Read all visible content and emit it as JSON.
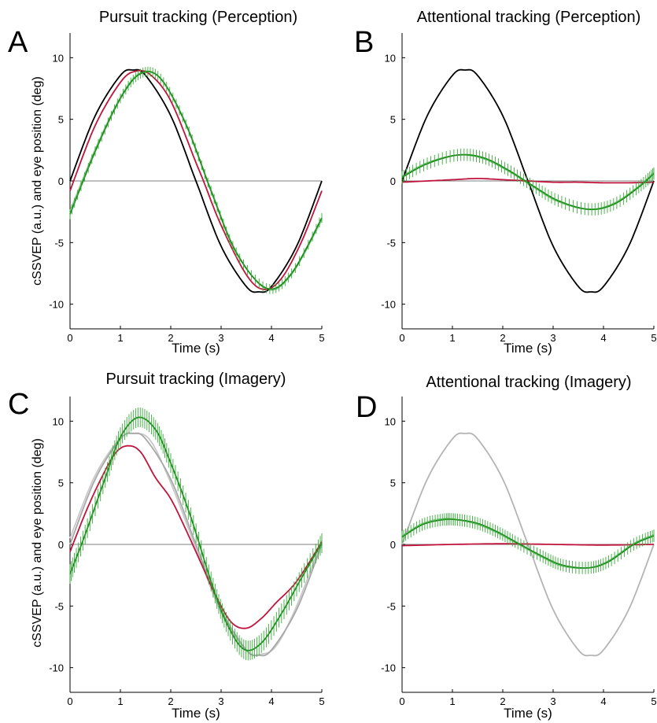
{
  "chart_data": [
    {
      "panel_letter": "A",
      "title": "Pursuit tracking (Perception)",
      "type": "line",
      "xlabel": "Time (s)",
      "ylabel": "cSSVEP (a.u.) and eye position (deg)",
      "xlim": [
        0,
        5
      ],
      "ylim": [
        -12,
        12
      ],
      "xticks": [
        "0",
        "1",
        "2",
        "3",
        "4",
        "5"
      ],
      "yticks": [
        "-10",
        "-5",
        "0",
        "5",
        "10"
      ],
      "zero_line": true,
      "series": [
        {
          "role": "stimulus",
          "color": "#000000",
          "x": [
            0,
            0.5,
            1.0,
            1.25,
            1.5,
            2.0,
            2.5,
            3.0,
            3.5,
            3.75,
            4.0,
            4.5,
            5.0
          ],
          "y": [
            0,
            5.29,
            8.56,
            9.0,
            8.56,
            5.29,
            0,
            -5.29,
            -8.56,
            -9.0,
            -8.56,
            -5.29,
            0
          ]
        },
        {
          "role": "eye position",
          "color": "#c0143c",
          "x": [
            0,
            0.5,
            1.0,
            1.3,
            1.6,
            2.0,
            2.5,
            2.65,
            3.0,
            3.5,
            3.85,
            4.2,
            4.6,
            5.0
          ],
          "y": [
            -0.8,
            4.5,
            8.0,
            8.9,
            8.6,
            6.5,
            1.5,
            0,
            -3.6,
            -7.6,
            -8.8,
            -7.9,
            -4.9,
            -0.8
          ]
        },
        {
          "role": "cSSVEP mean",
          "color": "#1a8a1a",
          "errorbars": true,
          "err": 0.4,
          "x": [
            0,
            0.5,
            1.0,
            1.4,
            1.8,
            2.3,
            2.8,
            3.3,
            3.9,
            4.4,
            5.0
          ],
          "y": [
            -2.7,
            2.4,
            6.7,
            8.7,
            8.3,
            4.6,
            -0.8,
            -5.8,
            -8.7,
            -7.5,
            -3.0
          ]
        },
        {
          "role": "fit",
          "color": "#8ecf8e",
          "x": [
            0,
            0.5,
            1.0,
            1.4,
            1.8,
            2.3,
            2.8,
            3.3,
            3.9,
            4.4,
            5.0
          ],
          "y": [
            -2.4,
            2.6,
            6.8,
            8.8,
            8.3,
            4.7,
            -0.7,
            -5.7,
            -8.8,
            -7.6,
            -3.2
          ]
        }
      ]
    },
    {
      "panel_letter": "B",
      "title": "Attentional tracking (Perception)",
      "type": "line",
      "xlabel": "Time (s)",
      "ylabel": "",
      "xlim": [
        0,
        5
      ],
      "ylim": [
        -12,
        12
      ],
      "xticks": [
        "0",
        "1",
        "2",
        "3",
        "4",
        "5"
      ],
      "yticks": [
        "-10",
        "-5",
        "0",
        "5",
        "10"
      ],
      "zero_line": true,
      "series": [
        {
          "role": "stimulus",
          "color": "#000000",
          "x": [
            0,
            0.5,
            1.0,
            1.25,
            1.5,
            2.0,
            2.5,
            3.0,
            3.5,
            3.75,
            4.0,
            4.5,
            5.0
          ],
          "y": [
            0,
            5.29,
            8.56,
            9.0,
            8.56,
            5.29,
            0,
            -5.29,
            -8.56,
            -9.0,
            -8.56,
            -5.29,
            0
          ]
        },
        {
          "role": "eye position",
          "color": "#c0143c",
          "x": [
            0,
            1.0,
            1.5,
            2.0,
            2.5,
            3.0,
            3.5,
            4.0,
            4.5,
            5.0
          ],
          "y": [
            -0.1,
            0.1,
            0.2,
            0.1,
            0.0,
            -0.1,
            -0.1,
            -0.15,
            -0.15,
            -0.1
          ]
        },
        {
          "role": "cSSVEP mean",
          "color": "#1a8a1a",
          "errorbars": true,
          "err": 0.5,
          "x": [
            0,
            0.5,
            1.1,
            1.6,
            2.1,
            2.6,
            3.1,
            3.7,
            4.2,
            4.7,
            5.0
          ],
          "y": [
            0.3,
            1.4,
            2.1,
            1.9,
            0.9,
            -0.4,
            -1.6,
            -2.3,
            -1.9,
            -0.5,
            0.6
          ]
        },
        {
          "role": "fit",
          "color": "#8ecf8e",
          "x": [
            0,
            0.5,
            1.1,
            1.6,
            2.1,
            2.6,
            3.1,
            3.7,
            4.2,
            4.7,
            5.0
          ],
          "y": [
            0.4,
            1.5,
            2.1,
            1.8,
            0.8,
            -0.5,
            -1.7,
            -2.3,
            -1.8,
            -0.4,
            0.7
          ]
        }
      ]
    },
    {
      "panel_letter": "C",
      "title": "Pursuit tracking (Imagery)",
      "type": "line",
      "xlabel": "Time (s)",
      "ylabel": "cSSVEP (a.u.) and eye position (deg)",
      "xlim": [
        0,
        5
      ],
      "ylim": [
        -12,
        12
      ],
      "xticks": [
        "0",
        "1",
        "2",
        "3",
        "4",
        "5"
      ],
      "yticks": [
        "-10",
        "-5",
        "0",
        "5",
        "10"
      ],
      "zero_line": true,
      "series": [
        {
          "role": "stimulus",
          "color": "#a8a8a8",
          "x": [
            0,
            0.5,
            1.0,
            1.25,
            1.5,
            2.0,
            2.5,
            3.0,
            3.5,
            3.75,
            4.0,
            4.5,
            5.0
          ],
          "y": [
            0,
            5.29,
            8.56,
            9.0,
            8.56,
            5.29,
            0,
            -5.29,
            -8.56,
            -9.0,
            -8.56,
            -5.29,
            0
          ]
        },
        {
          "role": "stimulus 2",
          "color": "#c8c8c8",
          "x": [
            0,
            0.5,
            1.0,
            1.3,
            1.6,
            2.0,
            2.5,
            3.0,
            3.5,
            3.8,
            4.1,
            4.5,
            5.0
          ],
          "y": [
            0.5,
            5.6,
            8.6,
            9.0,
            8.4,
            5.0,
            -0.3,
            -5.5,
            -8.6,
            -8.9,
            -8.2,
            -5.0,
            0.3
          ]
        },
        {
          "role": "eye position",
          "color": "#c0143c",
          "x": [
            0,
            0.3,
            0.6,
            0.9,
            1.15,
            1.4,
            1.7,
            2.0,
            2.3,
            2.6,
            2.9,
            3.2,
            3.5,
            3.8,
            4.1,
            4.5,
            5.0
          ],
          "y": [
            -0.6,
            2.5,
            5.2,
            7.4,
            8.0,
            7.5,
            5.4,
            3.7,
            1.2,
            -1.5,
            -4.2,
            -6.3,
            -6.8,
            -6.0,
            -4.7,
            -3.0,
            0.2
          ]
        },
        {
          "role": "cSSVEP mean",
          "color": "#1a8a1a",
          "errorbars": true,
          "err": 0.8,
          "x": [
            0,
            0.3,
            0.7,
            1.0,
            1.35,
            1.7,
            2.0,
            2.4,
            2.8,
            3.1,
            3.45,
            3.8,
            4.2,
            4.6,
            5.0
          ],
          "y": [
            -2.4,
            0.8,
            5.4,
            8.7,
            10.3,
            9.3,
            6.6,
            2.2,
            -3.0,
            -6.3,
            -8.5,
            -8.0,
            -5.6,
            -2.7,
            0.1
          ]
        }
      ]
    },
    {
      "panel_letter": "D",
      "title": "Attentional tracking (Imagery)",
      "type": "line",
      "xlabel": "Time (s)",
      "ylabel": "",
      "xlim": [
        0,
        5
      ],
      "ylim": [
        -12,
        12
      ],
      "xticks": [
        "0",
        "1",
        "2",
        "3",
        "4",
        "5"
      ],
      "yticks": [
        "-10",
        "-5",
        "0",
        "5",
        "10"
      ],
      "zero_line": true,
      "series": [
        {
          "role": "stimulus",
          "color": "#b4b4b4",
          "x": [
            0,
            0.5,
            1.0,
            1.25,
            1.5,
            2.0,
            2.5,
            3.0,
            3.5,
            3.75,
            4.0,
            4.5,
            5.0
          ],
          "y": [
            0,
            5.29,
            8.56,
            9.0,
            8.56,
            5.29,
            0,
            -5.29,
            -8.56,
            -9.0,
            -8.56,
            -5.29,
            0
          ]
        },
        {
          "role": "eye position",
          "color": "#c0143c",
          "x": [
            0,
            1.0,
            2.0,
            3.0,
            4.0,
            5.0
          ],
          "y": [
            -0.1,
            0.0,
            0.05,
            0.0,
            -0.05,
            0.0
          ]
        },
        {
          "role": "cSSVEP mean",
          "color": "#1a8a1a",
          "errorbars": true,
          "err": 0.5,
          "x": [
            0,
            0.4,
            0.8,
            1.1,
            1.5,
            1.9,
            2.3,
            2.8,
            3.2,
            3.7,
            4.1,
            4.6,
            5.0
          ],
          "y": [
            0.6,
            1.6,
            2.0,
            2.0,
            1.7,
            1.0,
            0.1,
            -1.0,
            -1.7,
            -1.9,
            -1.4,
            0.0,
            0.7
          ]
        },
        {
          "role": "fit",
          "color": "#8ecf8e",
          "x": [
            0,
            0.4,
            0.8,
            1.1,
            1.5,
            1.9,
            2.3,
            2.8,
            3.2,
            3.7,
            4.1,
            4.6,
            5.0
          ],
          "y": [
            0.7,
            1.7,
            2.1,
            2.0,
            1.6,
            0.9,
            0.0,
            -1.1,
            -1.8,
            -1.9,
            -1.3,
            0.1,
            0.8
          ]
        }
      ]
    }
  ]
}
